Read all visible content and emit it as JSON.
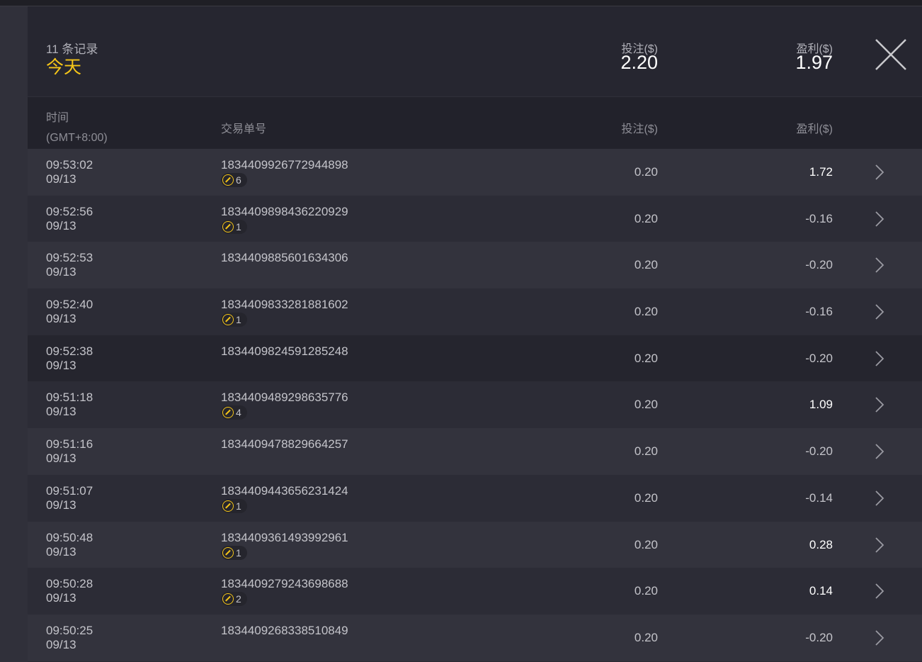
{
  "header": {
    "count": "11 条记录",
    "period": "今天",
    "bet_label": "投注($)",
    "bet_total": "2.20",
    "profit_label": "盈利($)",
    "profit_total": "1.97",
    "close_icon": "close-icon"
  },
  "columns": {
    "time": "时间",
    "timezone": "(GMT+8:00)",
    "order": "交易单号",
    "bet": "投注($)",
    "profit": "盈利($)"
  },
  "rows": [
    {
      "time": "09:53:02",
      "date": "09/13",
      "id": "1834409926772944898",
      "badge": "6",
      "bet": "0.20",
      "profit": "1.72",
      "pos": true
    },
    {
      "time": "09:52:56",
      "date": "09/13",
      "id": "1834409898436220929",
      "badge": "1",
      "bet": "0.20",
      "profit": "-0.16"
    },
    {
      "time": "09:52:53",
      "date": "09/13",
      "id": "1834409885601634306",
      "bet": "0.20",
      "profit": "-0.20"
    },
    {
      "time": "09:52:40",
      "date": "09/13",
      "id": "1834409833281881602",
      "badge": "1",
      "bet": "0.20",
      "profit": "-0.16"
    },
    {
      "time": "09:52:38",
      "date": "09/13",
      "id": "1834409824591285248",
      "bet": "0.20",
      "profit": "-0.20",
      "hl": true
    },
    {
      "time": "09:51:18",
      "date": "09/13",
      "id": "1834409489298635776",
      "badge": "4",
      "bet": "0.20",
      "profit": "1.09",
      "pos": true
    },
    {
      "time": "09:51:16",
      "date": "09/13",
      "id": "1834409478829664257",
      "bet": "0.20",
      "profit": "-0.20"
    },
    {
      "time": "09:51:07",
      "date": "09/13",
      "id": "1834409443656231424",
      "badge": "1",
      "bet": "0.20",
      "profit": "-0.14"
    },
    {
      "time": "09:50:48",
      "date": "09/13",
      "id": "1834409361493992961",
      "badge": "1",
      "bet": "0.20",
      "profit": "0.28",
      "pos": true
    },
    {
      "time": "09:50:28",
      "date": "09/13",
      "id": "1834409279243698688",
      "badge": "2",
      "bet": "0.20",
      "profit": "0.14",
      "pos": true
    },
    {
      "time": "09:50:25",
      "date": "09/13",
      "id": "1834409268338510849",
      "bet": "0.20",
      "profit": "-0.20"
    }
  ],
  "colors": {
    "accent": "#f5c518",
    "positive": "#ffffff",
    "neutral": "#c4c4ca"
  }
}
